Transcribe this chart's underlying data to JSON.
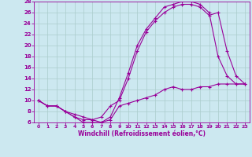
{
  "xlabel": "Windchill (Refroidissement éolien,°C)",
  "bg_color": "#cce8f0",
  "line_color": "#990099",
  "grid_color": "#aacccc",
  "xlim": [
    -0.5,
    23.5
  ],
  "ylim": [
    6,
    28
  ],
  "xticks": [
    0,
    1,
    2,
    3,
    4,
    5,
    6,
    7,
    8,
    9,
    10,
    11,
    12,
    13,
    14,
    15,
    16,
    17,
    18,
    19,
    20,
    21,
    22,
    23
  ],
  "yticks": [
    6,
    8,
    10,
    12,
    14,
    16,
    18,
    20,
    22,
    24,
    26,
    28
  ],
  "curve1_x": [
    0,
    1,
    2,
    3,
    4,
    5,
    6,
    7,
    8,
    9,
    10,
    11,
    12,
    13,
    14,
    15,
    16,
    17,
    18,
    19,
    20,
    21,
    22,
    23
  ],
  "curve1_y": [
    10,
    9,
    9,
    8,
    7,
    6,
    6,
    6,
    7,
    10.5,
    15,
    20,
    23,
    25,
    27,
    27.5,
    28,
    28,
    27.5,
    26,
    18,
    14.5,
    13,
    13
  ],
  "curve2_x": [
    0,
    1,
    2,
    3,
    4,
    5,
    6,
    7,
    8,
    9,
    10,
    11,
    12,
    13,
    14,
    15,
    16,
    17,
    18,
    19,
    20,
    21,
    22,
    23
  ],
  "curve2_y": [
    10,
    9,
    9,
    8,
    7,
    6.5,
    6.5,
    7,
    9,
    10,
    14,
    19,
    22.5,
    24.5,
    26,
    27,
    27.5,
    27.5,
    27,
    25.5,
    26,
    19,
    14.5,
    13
  ],
  "curve3_x": [
    0,
    1,
    2,
    3,
    4,
    5,
    6,
    7,
    8,
    9,
    10,
    11,
    12,
    13,
    14,
    15,
    16,
    17,
    18,
    19,
    20,
    21,
    22,
    23
  ],
  "curve3_y": [
    10,
    9,
    9,
    8,
    7.5,
    7,
    6.5,
    6,
    6.5,
    9,
    9.5,
    10,
    10.5,
    11,
    12,
    12.5,
    12,
    12,
    12.5,
    12.5,
    13,
    13,
    13,
    13
  ]
}
